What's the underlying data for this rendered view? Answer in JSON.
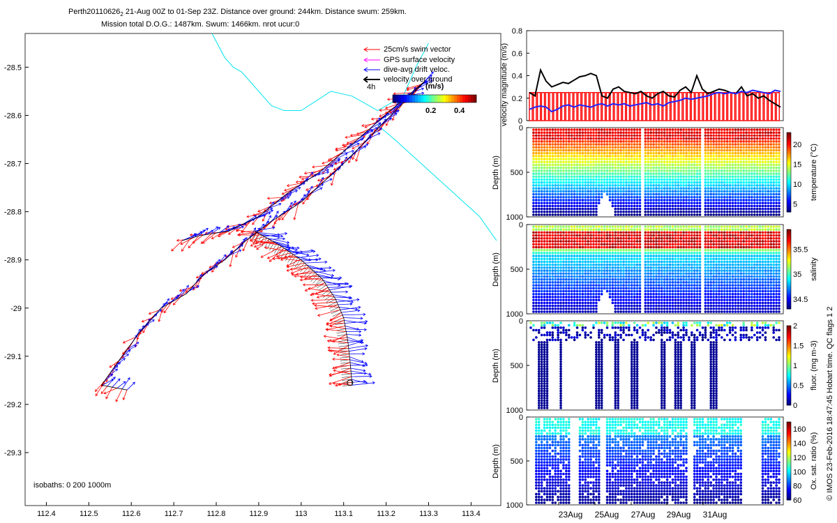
{
  "title": {
    "line1": "Perth20110626",
    "line1_sub": "2",
    "line1_rest": " 21-Aug 00Z to 01-Sep 23Z. Distance over ground: 244km. Distance swum: 259km.",
    "line2": "Mission total D.O.G.: 1487km. Swum: 1466km. nrot ucur:0"
  },
  "colors": {
    "swim": "#ff0000",
    "gps": "#ff00ff",
    "drift": "#0000ff",
    "ground": "#000000",
    "isobath": "#00e5ee",
    "mag_bar": "#ff0000",
    "mag_line": "#000000",
    "mag_drift": "#2020ff"
  },
  "map": {
    "legend": [
      {
        "label": "25cm/s swim vector",
        "color": "#ff0000"
      },
      {
        "label": "GPS surface velocity",
        "color": "#ff00ff"
      },
      {
        "label": "dive-avg drift veloc.",
        "color": "#0000ff"
      },
      {
        "label": "velocity over ground",
        "color": "#000000"
      }
    ],
    "time_label": "4h",
    "colorbar_title": "(m/s)",
    "colorbar_ticks": [
      "0.2",
      "0.4"
    ],
    "isobath_note": "isobaths: 0   200  1000m"
  },
  "chart_data": [
    {
      "type": "line",
      "name": "glider track map",
      "xlim": [
        112.35,
        113.47
      ],
      "ylim": [
        -29.41,
        -28.43
      ],
      "xticks": [
        "112.4",
        "112.5",
        "112.6",
        "112.7",
        "112.8",
        "112.9",
        "113",
        "113.1",
        "113.2",
        "113.3",
        "113.4"
      ],
      "yticks": [
        "-28.5",
        "-28.6",
        "-28.7",
        "-28.8",
        "-28.9",
        "-29",
        "-29.1",
        "-29.2",
        "-29.3"
      ],
      "track_A": {
        "x": [
          113.29,
          113.21,
          113.12,
          113.04,
          112.97,
          112.9,
          112.83,
          112.76,
          112.72
        ],
        "y": [
          -28.53,
          -28.59,
          -28.66,
          -28.72,
          -28.76,
          -28.81,
          -28.84,
          -28.85,
          -28.86
        ]
      },
      "track_B": {
        "x": [
          113.29,
          113.2,
          113.1,
          113.0,
          112.93,
          112.87,
          112.82,
          112.77,
          112.73,
          112.67,
          112.62,
          112.57,
          112.53,
          112.59
        ],
        "y": [
          -28.53,
          -28.61,
          -28.7,
          -28.78,
          -28.82,
          -28.86,
          -28.9,
          -28.93,
          -28.97,
          -29.0,
          -29.05,
          -29.11,
          -29.16,
          -29.17
        ]
      },
      "track_C": {
        "x": [
          112.89,
          112.95,
          113.0,
          113.05,
          113.08,
          113.1,
          113.11,
          113.115,
          113.12
        ],
        "y": [
          -28.84,
          -28.87,
          -28.9,
          -28.94,
          -28.98,
          -29.02,
          -29.07,
          -29.11,
          -29.16
        ]
      },
      "isobath": {
        "x": [
          112.79,
          112.82,
          112.84,
          112.86,
          112.89,
          112.93,
          112.96,
          113.0,
          113.07,
          113.12,
          113.18,
          113.24,
          113.27,
          113.3
        ],
        "y": [
          -28.43,
          -28.48,
          -28.5,
          -28.51,
          -28.54,
          -28.58,
          -28.59,
          -28.59,
          -28.55,
          -28.56,
          -28.59,
          -28.56,
          -28.5,
          -28.45
        ]
      },
      "isobath2": {
        "x": [
          113.18,
          113.22,
          113.27,
          113.32,
          113.37,
          113.42,
          113.46
        ],
        "y": [
          -28.62,
          -28.65,
          -28.69,
          -28.73,
          -28.77,
          -28.81,
          -28.86
        ]
      }
    },
    {
      "type": "line",
      "name": "velocity panel",
      "ylabel": "velocity magnitude (m/s)",
      "ylim": [
        0,
        0.8
      ],
      "yticks": [
        "0",
        "0.2",
        "0.4",
        "0.6",
        "0.8"
      ],
      "xlim": [
        21,
        33
      ],
      "ground_speed": [
        0.25,
        0.22,
        0.45,
        0.35,
        0.3,
        0.32,
        0.34,
        0.33,
        0.36,
        0.39,
        0.4,
        0.42,
        0.4,
        0.22,
        0.2,
        0.28,
        0.3,
        0.26,
        0.25,
        0.24,
        0.26,
        0.22,
        0.2,
        0.24,
        0.26,
        0.22,
        0.21,
        0.27,
        0.3,
        0.25,
        0.4,
        0.28,
        0.24,
        0.26,
        0.28,
        0.27,
        0.25,
        0.24,
        0.3,
        0.22,
        0.24,
        0.2,
        0.22,
        0.18,
        0.15,
        0.12
      ],
      "drift_speed": [
        0.1,
        0.12,
        0.13,
        0.12,
        0.08,
        0.1,
        0.13,
        0.14,
        0.12,
        0.14,
        0.13,
        0.12,
        0.14,
        0.15,
        0.13,
        0.15,
        0.14,
        0.15,
        0.13,
        0.14,
        0.15,
        0.16,
        0.14,
        0.15,
        0.13,
        0.16,
        0.17,
        0.18,
        0.2,
        0.19,
        0.2,
        0.21,
        0.22,
        0.24,
        0.25,
        0.24,
        0.25,
        0.24,
        0.26,
        0.25,
        0.27,
        0.26,
        0.25,
        0.24,
        0.27,
        0.26
      ],
      "swim_speed": 0.25
    },
    {
      "type": "scatter",
      "name": "temperature section",
      "ylabel": "Depth (m)",
      "yticks": [
        "0",
        "500",
        "1000"
      ],
      "colorbar_label": "temperature (°C)",
      "colorbar_ticks": [
        "5",
        "10",
        "15",
        "20"
      ],
      "crange": [
        3,
        23
      ]
    },
    {
      "type": "scatter",
      "name": "salinity section",
      "ylabel": "Depth (m)",
      "yticks": [
        "0",
        "500",
        "1000"
      ],
      "colorbar_label": "salinity",
      "colorbar_ticks": [
        "34.5",
        "35",
        "35.5"
      ],
      "crange": [
        34.3,
        35.9
      ]
    },
    {
      "type": "scatter",
      "name": "fluorescence section",
      "ylabel": "Depth (m)",
      "yticks": [
        "0",
        "500",
        "1000"
      ],
      "colorbar_label": "fluor. (mg m-3)",
      "colorbar_ticks": [
        "0",
        "0.5",
        "1",
        "1.5",
        "2"
      ],
      "crange": [
        0,
        2
      ]
    },
    {
      "type": "scatter",
      "name": "oxygen section",
      "ylabel": "Depth (m)",
      "yticks": [
        "0",
        "500",
        "1000"
      ],
      "colorbar_label": "Ox. sat. ratio (%)",
      "colorbar_ticks": [
        "60",
        "80",
        "100",
        "120",
        "140",
        "160"
      ],
      "crange": [
        60,
        170
      ],
      "xticks": [
        "23Aug",
        "25Aug",
        "27Aug",
        "29Aug",
        "31Aug"
      ]
    }
  ],
  "footer_note": "© IMOS 23-Feb-2016 18:47:45 Hobart time. QC flags 1  2"
}
